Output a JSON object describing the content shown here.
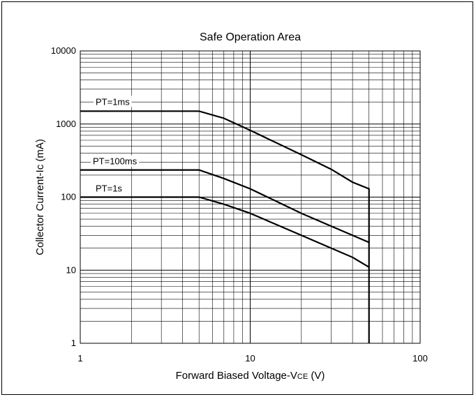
{
  "chart_data": {
    "type": "line",
    "title": "Safe Operation Area",
    "xlabel": "Forward Biased Voltage-VCE (V)",
    "xlabel_parts": {
      "main": "Forward Biased Voltage-V",
      "sub": "CE",
      "unit": " (V)"
    },
    "ylabel": "Collector Current-Ic (mA)",
    "x_scale": "log",
    "y_scale": "log",
    "xlim": [
      1,
      100
    ],
    "ylim": [
      1,
      10000
    ],
    "grid": true,
    "x_ticks": [
      {
        "value": 1,
        "label": "1"
      },
      {
        "value": 10,
        "label": "10"
      },
      {
        "value": 100,
        "label": "100"
      }
    ],
    "y_ticks": [
      {
        "value": 1,
        "label": "1"
      },
      {
        "value": 10,
        "label": "10"
      },
      {
        "value": 100,
        "label": "100"
      },
      {
        "value": 1000,
        "label": "1000"
      },
      {
        "value": 10000,
        "label": "10000"
      }
    ],
    "series": [
      {
        "name": "PT=1ms",
        "x": [
          1,
          5,
          7,
          10,
          20,
          30,
          40,
          50,
          50
        ],
        "y": [
          1500,
          1500,
          1200,
          820,
          380,
          240,
          160,
          130,
          1
        ]
      },
      {
        "name": "PT=100ms",
        "x": [
          1,
          5,
          7,
          10,
          20,
          30,
          40,
          50
        ],
        "y": [
          235,
          235,
          180,
          130,
          60,
          40,
          30,
          24
        ]
      },
      {
        "name": "PT=1s",
        "x": [
          1,
          5,
          7,
          10,
          20,
          30,
          40,
          50
        ],
        "y": [
          100,
          100,
          80,
          60,
          30,
          20,
          15,
          11
        ]
      }
    ]
  }
}
